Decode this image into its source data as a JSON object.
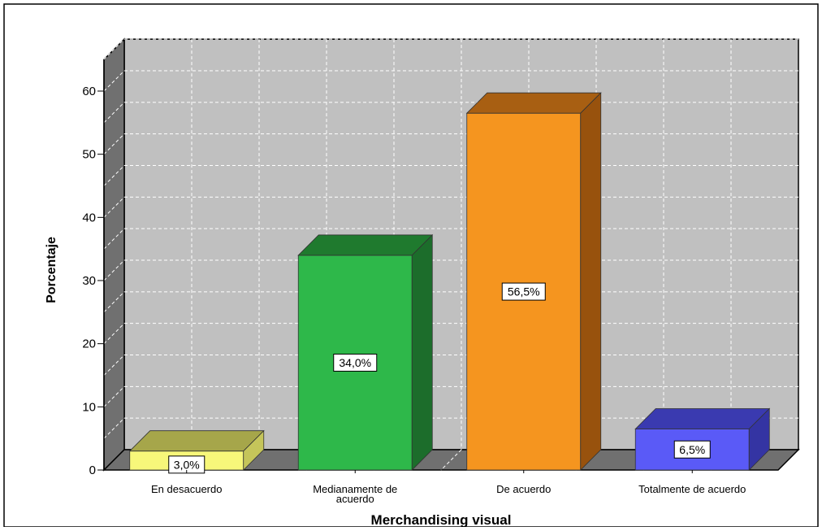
{
  "chart_data": {
    "type": "bar",
    "style": "3d",
    "title": "",
    "xlabel": "Merchandising visual",
    "ylabel": "Porcentaje",
    "ylim": [
      0,
      65
    ],
    "yticks": [
      0,
      10,
      20,
      30,
      40,
      50,
      60
    ],
    "grid": true,
    "categories": [
      "En desacuerdo",
      "Medianamente de acuerdo",
      "De acuerdo",
      "Totalmente de acuerdo"
    ],
    "category_lines": [
      [
        "En desacuerdo"
      ],
      [
        "Medianamente de",
        "acuerdo"
      ],
      [
        "De acuerdo"
      ],
      [
        "Totalmente de acuerdo"
      ]
    ],
    "values": [
      3.0,
      34.0,
      56.5,
      6.5
    ],
    "data_labels": [
      "3,0%",
      "34,0%",
      "56,5%",
      "6,5%"
    ],
    "colors": {
      "bars": [
        "#f7f77a",
        "#2eb84a",
        "#f5951f",
        "#5a5af7"
      ],
      "bar_tops": [
        "#a6a64a",
        "#1f7a2e",
        "#a85f12",
        "#3a3ab0"
      ],
      "bar_sides": [
        "#c5c55a",
        "#1c6d2b",
        "#98520d",
        "#3434a3"
      ],
      "plot_background": "#c0c0c0",
      "wall_side": "#707070",
      "floor": "#707070",
      "grid": "#ffffff"
    }
  }
}
